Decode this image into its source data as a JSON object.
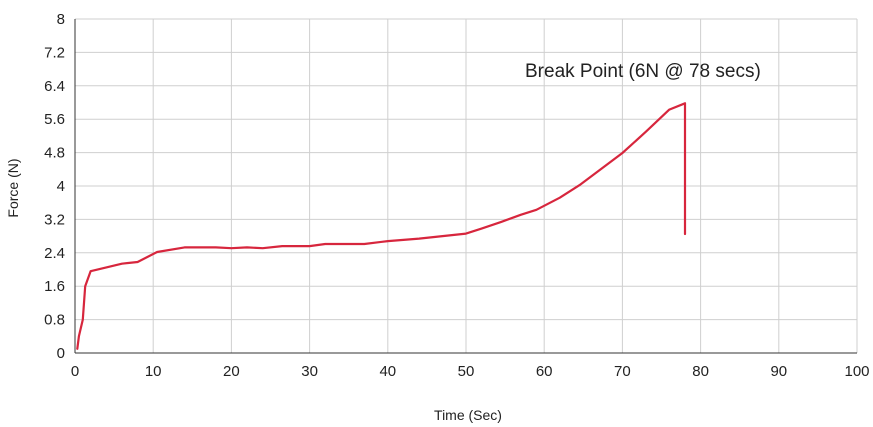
{
  "chart_data": {
    "type": "line",
    "title": "",
    "xlabel": "Time (Sec)",
    "ylabel": "Force (N)",
    "xlim": [
      0,
      100
    ],
    "ylim": [
      0,
      8
    ],
    "x_ticks": [
      "0",
      "10",
      "20",
      "30",
      "40",
      "50",
      "60",
      "70",
      "80",
      "90",
      "100"
    ],
    "y_ticks": [
      "0",
      "0.8",
      "1.6",
      "2.4",
      "3.2",
      "4",
      "4.8",
      "5.6",
      "6.4",
      "7.2",
      "8"
    ],
    "grid": true,
    "line_color": "#d7263d",
    "grid_color": "#cfcfcf",
    "annotation": "Break Point (6N @ 78 secs)",
    "series": [
      {
        "x": [
          0.3,
          0.5,
          1.0,
          1.3,
          2.0,
          4.0,
          6.0,
          8.0,
          10.5,
          14.0,
          18.0,
          20.0,
          22.0,
          24.0,
          26.5,
          30.0,
          32.0,
          37.0,
          40.0,
          44.0,
          47.0,
          50.0,
          52.0,
          54.5,
          57.0,
          59.0,
          62.0,
          64.5,
          67.0,
          70.0,
          73.0,
          76.0,
          78.0,
          78.0
        ],
        "y": [
          0.1,
          0.4,
          0.8,
          1.6,
          1.96,
          2.05,
          2.14,
          2.18,
          2.42,
          2.53,
          2.53,
          2.51,
          2.53,
          2.51,
          2.56,
          2.56,
          2.61,
          2.61,
          2.68,
          2.74,
          2.8,
          2.86,
          2.98,
          3.14,
          3.31,
          3.43,
          3.72,
          4.02,
          4.37,
          4.79,
          5.3,
          5.83,
          5.98,
          2.85
        ]
      }
    ]
  }
}
